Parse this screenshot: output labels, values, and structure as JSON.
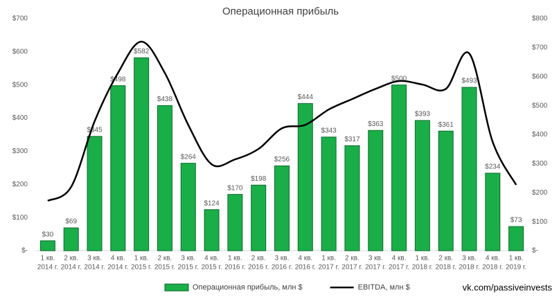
{
  "chart_data": {
    "type": "bar_line",
    "title": "Операционная прибыль",
    "categories": [
      [
        "1 кв.",
        "2014 г."
      ],
      [
        "2 кв.",
        "2014 г."
      ],
      [
        "3 кв.",
        "2014 г."
      ],
      [
        "4 кв.",
        "2014 г."
      ],
      [
        "1 кв.",
        "2015 г."
      ],
      [
        "2 кв.",
        "2015 г."
      ],
      [
        "3 кв.",
        "2015 г."
      ],
      [
        "4 кв.",
        "2015 г."
      ],
      [
        "1 кв.",
        "2016 г."
      ],
      [
        "2 кв.",
        "2016 г."
      ],
      [
        "3 кв.",
        "2016 г."
      ],
      [
        "4 кв.",
        "2016 г."
      ],
      [
        "1 кв.",
        "2017 г."
      ],
      [
        "2 кв.",
        "2017 г."
      ],
      [
        "3 кв.",
        "2017 г."
      ],
      [
        "4 кв.",
        "2017 г."
      ],
      [
        "1 кв.",
        "2018 г."
      ],
      [
        "2 кв.",
        "2018 г."
      ],
      [
        "3 кв.",
        "2018 г."
      ],
      [
        "4 кв.",
        "2018 г."
      ],
      [
        "1 кв.",
        "2019 г."
      ]
    ],
    "series": [
      {
        "name": "Операционная прибыль, млн $",
        "type": "bar",
        "color": "#1aae48",
        "values": [
          30,
          69,
          345,
          498,
          582,
          438,
          264,
          124,
          170,
          198,
          256,
          444,
          343,
          317,
          363,
          500,
          393,
          361,
          493,
          234,
          73
        ],
        "value_labels": [
          "$30",
          "$69",
          "$345",
          "$498",
          "$582",
          "$438",
          "$264",
          "$124",
          "$170",
          "$198",
          "$256",
          "$444",
          "$343",
          "$317",
          "$363",
          "$500",
          "$393",
          "$361",
          "$493",
          "$234",
          "$73"
        ]
      },
      {
        "name": "EBITDA, млн $",
        "type": "line",
        "color": "#000000",
        "axis": "y2",
        "values": [
          172,
          220,
          446,
          613,
          721,
          613,
          434,
          298,
          315,
          351,
          422,
          434,
          487,
          523,
          558,
          585,
          573,
          558,
          680,
          375,
          227
        ]
      }
    ],
    "ylim": [
      0,
      700
    ],
    "yticks": [
      {
        "value": 0,
        "label": "$-"
      },
      {
        "value": 100,
        "label": "$100"
      },
      {
        "value": 200,
        "label": "$200"
      },
      {
        "value": 300,
        "label": "$300"
      },
      {
        "value": 400,
        "label": "$400"
      },
      {
        "value": 500,
        "label": "$500"
      },
      {
        "value": 600,
        "label": "$600"
      },
      {
        "value": 700,
        "label": "$700"
      }
    ],
    "y2lim": [
      0,
      800
    ],
    "y2ticks": [
      {
        "value": 0,
        "label": "$-"
      },
      {
        "value": 100,
        "label": "$100"
      },
      {
        "value": 200,
        "label": "$200"
      },
      {
        "value": 300,
        "label": "$300"
      },
      {
        "value": 400,
        "label": "$400"
      },
      {
        "value": 500,
        "label": "$500"
      },
      {
        "value": 600,
        "label": "$600"
      },
      {
        "value": 700,
        "label": "$700"
      },
      {
        "value": 800,
        "label": "$800"
      }
    ],
    "grid": false,
    "legend": "bottom",
    "source": "vk.com/passiveinvests"
  }
}
